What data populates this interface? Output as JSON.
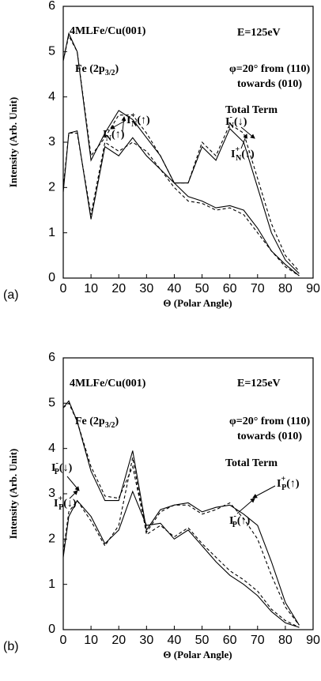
{
  "chart_data": [
    {
      "type": "line",
      "panel_label": "(a)",
      "xlabel": "Θ (Polar Angle)",
      "ylabel": "Intensity (Arb. Unit)",
      "xlim": [
        0,
        90
      ],
      "ylim": [
        0,
        6
      ],
      "xticks": [
        0,
        10,
        20,
        30,
        40,
        50,
        60,
        70,
        80,
        90
      ],
      "yticks": [
        0,
        1,
        2,
        3,
        4,
        5,
        6
      ],
      "x": [
        0,
        2,
        5,
        10,
        15,
        20,
        25,
        30,
        35,
        40,
        45,
        50,
        55,
        60,
        65,
        70,
        75,
        80,
        85
      ],
      "series": [
        {
          "color": "#000000",
          "dash": "solid",
          "values": [
            4.8,
            5.4,
            5.0,
            2.6,
            3.2,
            3.7,
            3.5,
            3.1,
            2.7,
            2.1,
            2.1,
            2.9,
            2.6,
            3.3,
            3.0,
            2.0,
            1.0,
            0.4,
            0.1
          ]
        },
        {
          "color": "#000000",
          "dash": "dashed",
          "values": [
            4.8,
            5.35,
            5.0,
            2.7,
            3.1,
            3.6,
            3.6,
            3.2,
            2.7,
            2.1,
            2.1,
            3.0,
            2.7,
            3.4,
            3.2,
            2.2,
            1.2,
            0.5,
            0.15
          ]
        },
        {
          "color": "#000000",
          "dash": "solid",
          "values": [
            1.9,
            3.2,
            3.25,
            1.3,
            2.9,
            2.7,
            3.1,
            2.7,
            2.4,
            2.1,
            1.8,
            1.7,
            1.55,
            1.6,
            1.5,
            1.1,
            0.6,
            0.3,
            0.05
          ]
        },
        {
          "color": "#000000",
          "dash": "dashed",
          "values": [
            2.0,
            3.2,
            3.2,
            1.4,
            3.0,
            2.8,
            3.0,
            2.8,
            2.4,
            2.0,
            1.7,
            1.65,
            1.5,
            1.55,
            1.4,
            1.0,
            0.6,
            0.25,
            0.05
          ]
        }
      ],
      "annotations": [
        {
          "text": "4MLFe/Cu(001)"
        },
        {
          "text": "E=125eV"
        },
        {
          "text": "Fe (2p",
          "sub": "3/2",
          "suffix": ")"
        },
        {
          "text": "φ=20° from (110)"
        },
        {
          "text": "towards (010)"
        },
        {
          "text": "Total Term"
        },
        {
          "text": "I",
          "sub": "N",
          "sup": "+",
          "suffix": "(↑)"
        },
        {
          "text": "I",
          "sub": "N",
          "sup": "-",
          "suffix": "(↑)"
        },
        {
          "text": "I",
          "sub": "N",
          "sup": "-",
          "suffix": "(↓)"
        },
        {
          "text": "I",
          "sub": "N",
          "sup": "+",
          "suffix": "(↓)"
        }
      ]
    },
    {
      "type": "line",
      "panel_label": "(b)",
      "xlabel": "Θ (Polar Angle)",
      "ylabel": "Intensity (Arb. Unit)",
      "xlim": [
        0,
        90
      ],
      "ylim": [
        0,
        6
      ],
      "xticks": [
        0,
        10,
        20,
        30,
        40,
        50,
        60,
        70,
        80,
        90
      ],
      "yticks": [
        0,
        1,
        2,
        3,
        4,
        5,
        6
      ],
      "x": [
        0,
        2,
        5,
        10,
        15,
        20,
        25,
        30,
        35,
        40,
        45,
        50,
        55,
        60,
        65,
        70,
        75,
        80,
        85
      ],
      "series": [
        {
          "color": "#000000",
          "dash": "solid",
          "values": [
            4.9,
            5.05,
            4.6,
            3.5,
            2.85,
            2.85,
            3.95,
            2.2,
            2.65,
            2.75,
            2.8,
            2.6,
            2.7,
            2.75,
            2.55,
            2.3,
            1.5,
            0.6,
            0.1
          ]
        },
        {
          "color": "#000000",
          "dash": "dashed",
          "values": [
            4.9,
            5.0,
            4.6,
            3.6,
            2.95,
            2.9,
            3.6,
            2.15,
            2.6,
            2.75,
            2.75,
            2.55,
            2.65,
            2.8,
            2.45,
            2.0,
            1.2,
            0.5,
            0.1
          ]
        },
        {
          "color": "#000000",
          "dash": "solid",
          "values": [
            1.6,
            2.5,
            2.85,
            2.5,
            1.9,
            2.2,
            3.05,
            2.3,
            2.35,
            2.0,
            2.2,
            1.85,
            1.5,
            1.2,
            1.0,
            0.75,
            0.4,
            0.15,
            0.05
          ]
        },
        {
          "color": "#000000",
          "dash": "dashed",
          "values": [
            1.7,
            2.6,
            2.85,
            2.4,
            1.85,
            2.3,
            3.8,
            2.1,
            2.3,
            2.05,
            2.25,
            1.9,
            1.6,
            1.3,
            1.1,
            0.85,
            0.45,
            0.2,
            0.05
          ]
        }
      ],
      "annotations": [
        {
          "text": "4MLFe/Cu(001)"
        },
        {
          "text": "E=125eV"
        },
        {
          "text": "Fe (2p",
          "sub": "3/2",
          "suffix": ")"
        },
        {
          "text": "φ=20° from (110)"
        },
        {
          "text": "towards (010)"
        },
        {
          "text": "Total Term"
        },
        {
          "text": "I",
          "sub": "P",
          "sup": "-",
          "suffix": "(↓)"
        },
        {
          "text": "I",
          "sub": "P",
          "sup": "+",
          "suffix": "(↓)"
        },
        {
          "text": "I",
          "sub": "P",
          "sup": "+",
          "suffix": "(↑)"
        },
        {
          "text": "I",
          "sub": "P",
          "sup": "-",
          "suffix": "(↑)"
        }
      ]
    }
  ]
}
